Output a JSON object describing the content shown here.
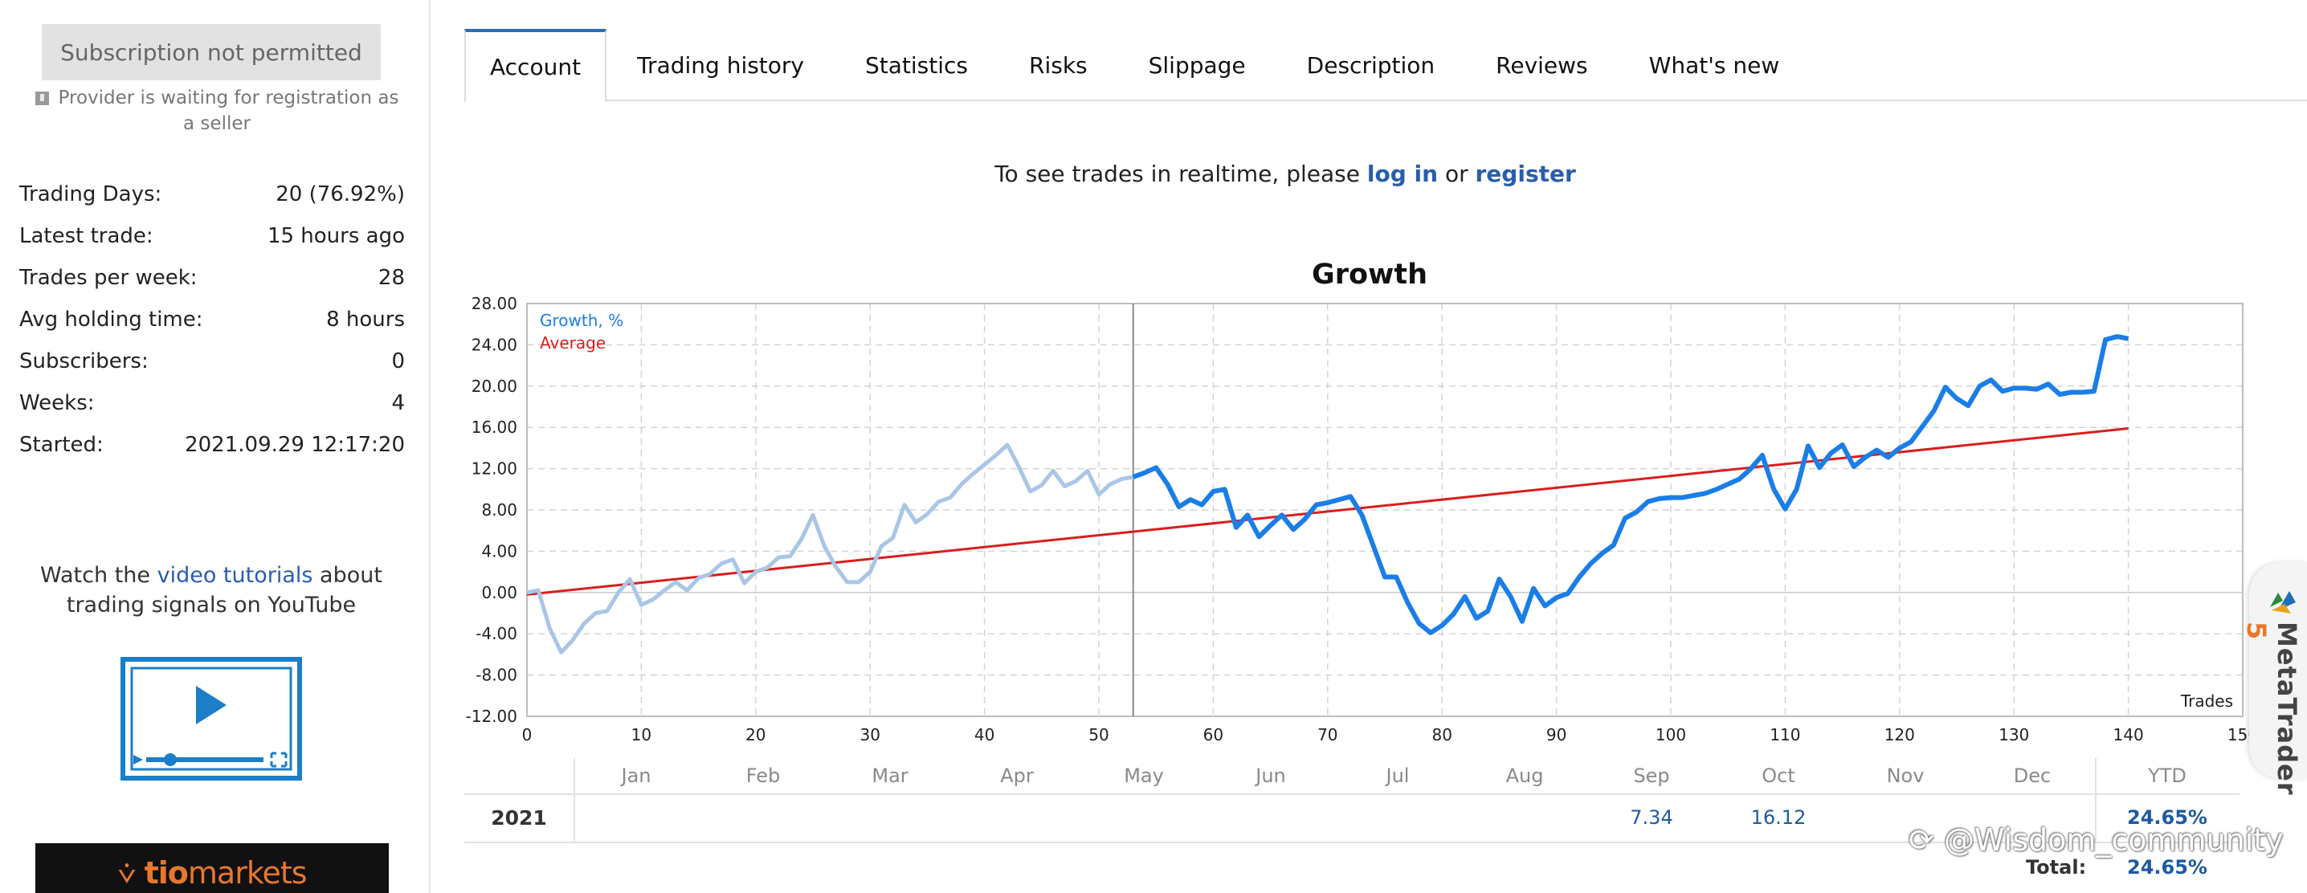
{
  "sidebar": {
    "subscription_button": "Subscription not permitted",
    "waiting_text": "Provider is waiting for registration as a seller",
    "stats": [
      {
        "label": "Trading Days:",
        "value": "20 (76.92%)"
      },
      {
        "label": "Latest trade:",
        "value": "15 hours ago"
      },
      {
        "label": "Trades per week:",
        "value": "28"
      },
      {
        "label": "Avg holding time:",
        "value": "8 hours"
      },
      {
        "label": "Subscribers:",
        "value": "0"
      },
      {
        "label": "Weeks:",
        "value": "4"
      },
      {
        "label": "Started:",
        "value": "2021.09.29 12:17:20"
      }
    ],
    "watch_prefix": "Watch the",
    "watch_link": "video tutorials",
    "watch_suffix": "about trading signals on YouTube",
    "banner_logo": "tiomarkets",
    "banner_logo_bold": "tio",
    "banner_logo_rest": "markets"
  },
  "tabs": [
    "Account",
    "Trading history",
    "Statistics",
    "Risks",
    "Slippage",
    "Description",
    "Reviews",
    "What's new"
  ],
  "active_tab": "Account",
  "realtime": {
    "prefix": "To see trades in realtime, please",
    "login": "log in",
    "or": "or",
    "register": "register"
  },
  "chart_data": {
    "type": "line",
    "title": "Growth",
    "xlabel": "Trades",
    "ylabel": "",
    "xlim": [
      0,
      150
    ],
    "ylim": [
      -12,
      28
    ],
    "x_ticks": [
      0,
      10,
      20,
      30,
      40,
      50,
      60,
      70,
      80,
      90,
      100,
      110,
      120,
      130,
      140,
      150
    ],
    "y_ticks": [
      "-12.00",
      "-8.00",
      "-4.00",
      "0.00",
      "4.00",
      "8.00",
      "12.00",
      "16.00",
      "20.00",
      "24.00",
      "28.00"
    ],
    "grid": true,
    "legend": [
      "Growth, %",
      "Average"
    ],
    "legend_position": "top-left",
    "vertical_marker_x": 53,
    "colors": {
      "growth": "#1a7ee8",
      "growth_history": "#a9c6e6",
      "average": "#d91e1e"
    },
    "series": [
      {
        "name": "Growth, %",
        "x": [
          0,
          1,
          2,
          3,
          4,
          5,
          6,
          7,
          8,
          9,
          10,
          11,
          12,
          13,
          14,
          15,
          16,
          17,
          18,
          19,
          20,
          21,
          22,
          23,
          24,
          25,
          26,
          27,
          28,
          29,
          30,
          31,
          32,
          33,
          34,
          35,
          36,
          37,
          38,
          39,
          40,
          41,
          42,
          43,
          44,
          45,
          46,
          47,
          48,
          49,
          50,
          51,
          52,
          53,
          54,
          55,
          56,
          57,
          58,
          59,
          60,
          61,
          62,
          63,
          64,
          65,
          66,
          67,
          68,
          69,
          70,
          71,
          72,
          73,
          74,
          75,
          76,
          77,
          78,
          79,
          80,
          81,
          82,
          83,
          84,
          85,
          86,
          87,
          88,
          89,
          90,
          91,
          92,
          93,
          94,
          95,
          96,
          97,
          98,
          99,
          100,
          101,
          102,
          103,
          104,
          105,
          106,
          107,
          108,
          109,
          110,
          111,
          112,
          113,
          114,
          115,
          116,
          117,
          118,
          119,
          120,
          121,
          122,
          123,
          124,
          125,
          126,
          127,
          128,
          129,
          130,
          131,
          132,
          133,
          134,
          135,
          136,
          137,
          138,
          139,
          140
        ],
        "y": [
          0,
          0.2,
          -3.5,
          -5.8,
          -4.6,
          -3,
          -2,
          -1.8,
          0,
          1.3,
          -1.2,
          -0.7,
          0.2,
          1,
          0.2,
          1.4,
          1.8,
          2.8,
          3.2,
          0.9,
          2,
          2.4,
          3.4,
          3.5,
          5.2,
          7.5,
          4.5,
          2.5,
          1,
          1,
          2,
          4.5,
          5.3,
          8.5,
          6.8,
          7.6,
          8.8,
          9.2,
          10.5,
          11.5,
          12.4,
          13.3,
          14.3,
          12.2,
          9.8,
          10.4,
          11.8,
          10.3,
          10.8,
          11.8,
          9.5,
          10.5,
          11,
          11.2,
          11.6,
          12.1,
          10.5,
          8.3,
          9,
          8.5,
          9.8,
          10,
          6.3,
          7.5,
          5.4,
          6.5,
          7.5,
          6.1,
          7.1,
          8.5,
          8.7,
          9,
          9.3,
          7.5,
          4.5,
          1.5,
          1.5,
          -1,
          -3,
          -3.9,
          -3.2,
          -2.1,
          -0.4,
          -2.5,
          -1.8,
          1.3,
          -0.4,
          -2.8,
          0.4,
          -1.3,
          -0.5,
          -0.1,
          1.5,
          2.8,
          3.8,
          4.6,
          7.2,
          7.8,
          8.8,
          9.1,
          9.2,
          9.2,
          9.4,
          9.6,
          10,
          10.5,
          11,
          12,
          13.3,
          10,
          8.1,
          10,
          14.2,
          12.1,
          13.5,
          14.3,
          12.2,
          13.1,
          13.8,
          13.1,
          14,
          14.6,
          16.1,
          17.6,
          19.9,
          18.8,
          18.1,
          20,
          20.6,
          19.5,
          19.8,
          19.8,
          19.7,
          20.2,
          19.2,
          19.4,
          19.4,
          19.5,
          24.5,
          24.8,
          24.6
        ]
      },
      {
        "name": "Average",
        "x": [
          0,
          140
        ],
        "y": [
          -0.2,
          15.9
        ]
      }
    ]
  },
  "year_table": {
    "months": [
      "Jan",
      "Feb",
      "Mar",
      "Apr",
      "May",
      "Jun",
      "Jul",
      "Aug",
      "Sep",
      "Oct",
      "Nov",
      "Dec"
    ],
    "ytd_header": "YTD",
    "rows": [
      {
        "year": "2021",
        "values": [
          "",
          "",
          "",
          "",
          "",
          "",
          "",
          "",
          "7.34",
          "16.12",
          "",
          ""
        ],
        "ytd": "24.65%"
      }
    ],
    "total_label": "Total:",
    "total_value": "24.65%"
  },
  "widget": {
    "brand": "MetaTrader",
    "version": "5"
  },
  "watermark": "@Wisdom_community"
}
